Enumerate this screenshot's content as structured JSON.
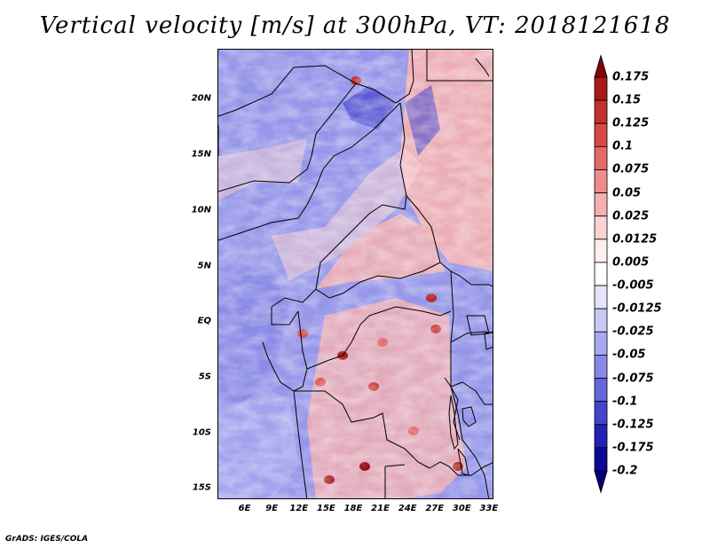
{
  "title": "Vertical velocity [m/s] at 300hPa, VT: 2018121618",
  "footer": "GrADS: IGES/COLA",
  "map": {
    "projection": "lat-lon",
    "region": "Central Africa",
    "lat_range": [
      -16,
      24.5
    ],
    "lon_range": [
      3,
      33.5
    ],
    "lat_ticks": [
      "20N",
      "15N",
      "10N",
      "5N",
      "EQ",
      "5S",
      "10S",
      "15S"
    ],
    "lat_values": [
      20,
      15,
      10,
      5,
      0,
      -5,
      -10,
      -15
    ],
    "lon_ticks": [
      "6E",
      "9E",
      "12E",
      "15E",
      "18E",
      "21E",
      "24E",
      "27E",
      "30E",
      "33E"
    ],
    "lon_values": [
      6,
      9,
      12,
      15,
      18,
      21,
      24,
      27,
      30,
      33
    ]
  },
  "colorbar": {
    "labels": [
      "0.175",
      "0.15",
      "0.125",
      "0.1",
      "0.075",
      "0.05",
      "0.025",
      "0.0125",
      "0.005",
      "-0.005",
      "-0.0125",
      "-0.025",
      "-0.05",
      "-0.075",
      "-0.1",
      "-0.125",
      "-0.175",
      "-0.2"
    ],
    "colors": [
      "#8b0000",
      "#a81a1a",
      "#c43030",
      "#d94848",
      "#e46868",
      "#ee8c8c",
      "#f5b0b0",
      "#fad2d2",
      "#ffeeee",
      "#ffffff",
      "#e4e4fa",
      "#c8c8f5",
      "#a8a8ee",
      "#8888e6",
      "#6666dc",
      "#4444cc",
      "#2222b4",
      "#0a0a96",
      "#00007a"
    ]
  }
}
